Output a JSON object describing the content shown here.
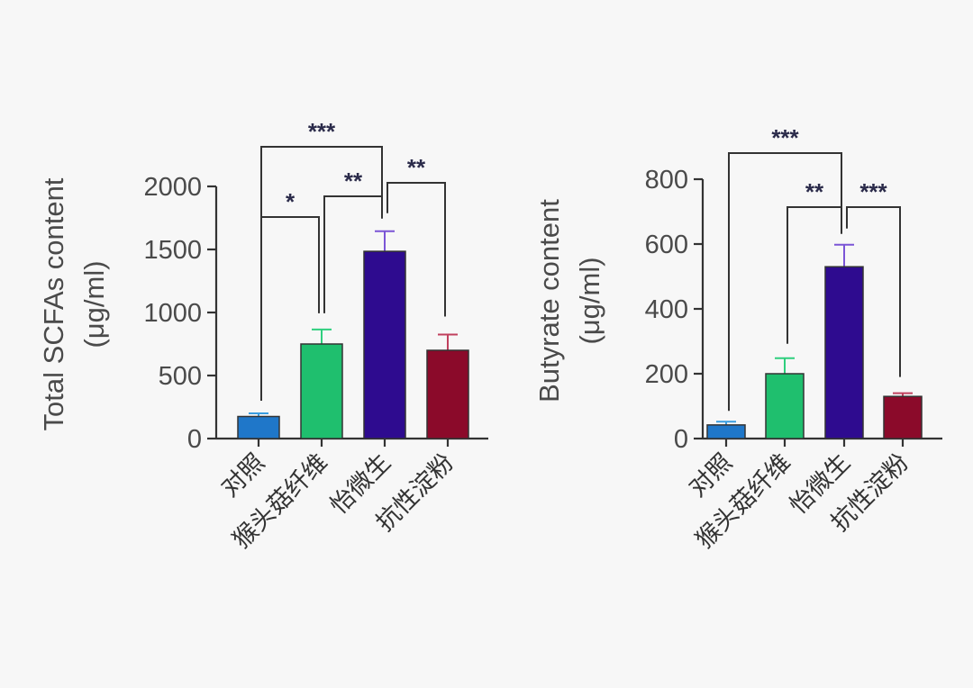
{
  "chart_data": [
    {
      "type": "bar",
      "title": "",
      "ylabel": "Total SCFAs content (μg/ml)",
      "ylabel_lines": [
        "Total SCFAs content",
        "(μg/ml)"
      ],
      "xlabel": "",
      "ylim": [
        0,
        2000
      ],
      "yticks": [
        0,
        500,
        1000,
        1500,
        2000
      ],
      "categories": [
        "对照",
        "猴头菇纤维",
        "怡微生",
        "抗性淀粉"
      ],
      "values": [
        175,
        750,
        1485,
        700
      ],
      "errors": [
        25,
        115,
        160,
        125
      ],
      "colors": [
        "#1f77c9",
        "#1fbf6e",
        "#2e0b8f",
        "#8b0a2a"
      ],
      "error_colors": [
        "#3a9de0",
        "#2fcf7e",
        "#7b55d6",
        "#c0405e"
      ],
      "category_label_color": "#333333",
      "highlight_category": "怡微生",
      "highlight_color": "#3a5bb0",
      "significance": [
        {
          "from": "对照",
          "to": "怡微生",
          "label": "***"
        },
        {
          "from": "对照",
          "to": "猴头菇纤维",
          "label": "*"
        },
        {
          "from": "猴头菇纤维",
          "to": "怡微生",
          "label": "**"
        },
        {
          "from": "怡微生",
          "to": "抗性淀粉",
          "label": "**"
        }
      ]
    },
    {
      "type": "bar",
      "title": "",
      "ylabel": "Butyrate content (μg/ml)",
      "ylabel_lines": [
        "Butyrate content",
        "(μg/ml)"
      ],
      "xlabel": "",
      "ylim": [
        0,
        800
      ],
      "yticks": [
        0,
        200,
        400,
        600,
        800
      ],
      "categories": [
        "对照",
        "猴头菇纤维",
        "怡微生",
        "抗性淀粉"
      ],
      "values": [
        42,
        200,
        530,
        130
      ],
      "errors": [
        10,
        48,
        68,
        10
      ],
      "colors": [
        "#1f77c9",
        "#1fbf6e",
        "#2e0b8f",
        "#8b0a2a"
      ],
      "error_colors": [
        "#3a9de0",
        "#2fcf7e",
        "#7b55d6",
        "#c0405e"
      ],
      "category_label_color": "#333333",
      "highlight_category": "怡微生",
      "highlight_color": "#3a5bb0",
      "significance": [
        {
          "from": "对照",
          "to": "怡微生",
          "label": "***"
        },
        {
          "from": "猴头菇纤维",
          "to": "怡微生",
          "label": "**"
        },
        {
          "from": "怡微生",
          "to": "抗性淀粉",
          "label": "***"
        }
      ]
    }
  ]
}
